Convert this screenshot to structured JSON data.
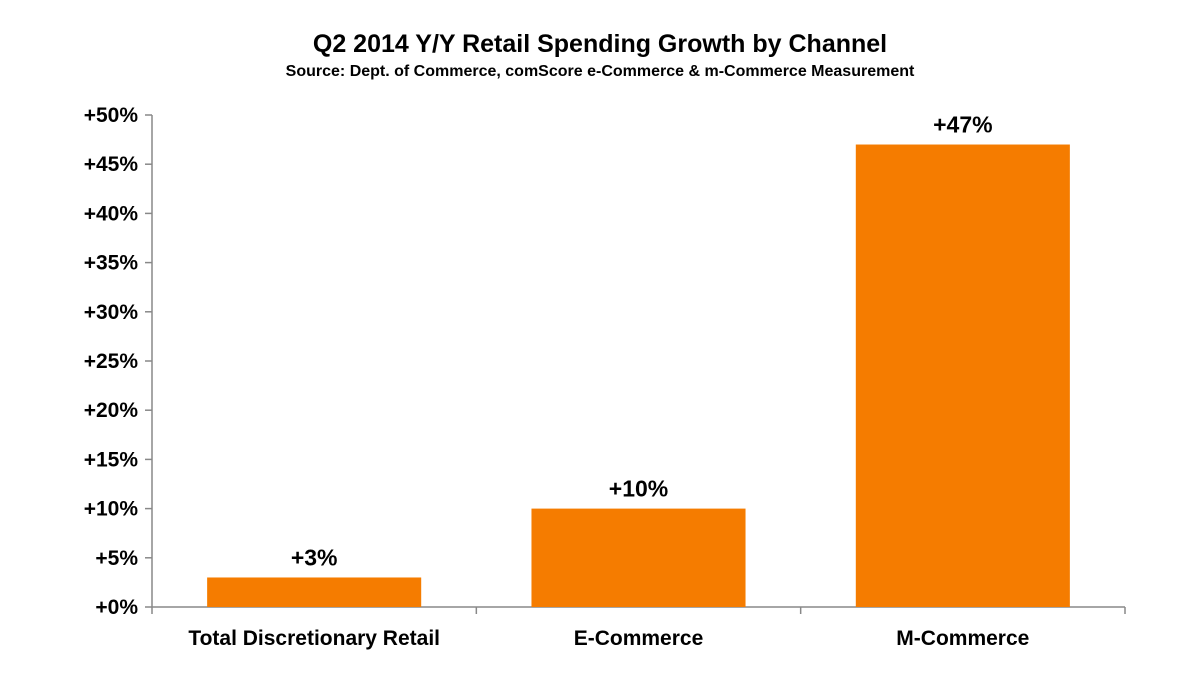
{
  "chart_data": {
    "type": "bar",
    "title": "Q2 2014 Y/Y Retail Spending Growth by Channel",
    "subtitle": "Source: Dept. of Commerce, comScore e-Commerce & m-Commerce Measurement",
    "categories": [
      "Total Discretionary Retail",
      "E-Commerce",
      "M-Commerce"
    ],
    "values": [
      3,
      10,
      47
    ],
    "data_labels": [
      "+3%",
      "+10%",
      "+47%"
    ],
    "ylim": [
      0,
      50
    ],
    "ytick_values": [
      0,
      5,
      10,
      15,
      20,
      25,
      30,
      35,
      40,
      45,
      50
    ],
    "ytick_labels": [
      "+0%",
      "+5%",
      "+10%",
      "+15%",
      "+20%",
      "+25%",
      "+30%",
      "+35%",
      "+40%",
      "+45%",
      "+50%"
    ],
    "xlabel": "",
    "ylabel": "",
    "grid": false,
    "legend": "none",
    "bar_color": "#F57C00",
    "axis_color": "#888888"
  }
}
